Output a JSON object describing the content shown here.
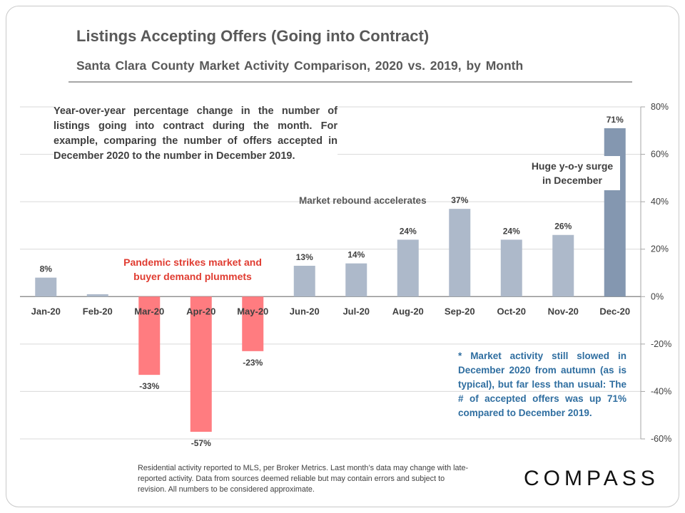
{
  "header": {
    "title": "Listings Accepting Offers (Going into Contract)",
    "subtitle": "Santa Clara County Market Activity Comparison,  2020 vs. 2019, by Month"
  },
  "annotations": {
    "description": "Year-over-year percentage change in the number of listings going into contract during the month. For example, comparing the number of offers accepted in December 2020 to the number in December 2019.",
    "rebound": "Market rebound accelerates",
    "surge_line1": "Huge y-o-y surge",
    "surge_line2": "in December",
    "pandemic_line1": "Pandemic strikes market and",
    "pandemic_line2": "buyer demand plummets",
    "december_note": "* Market activity still slowed in December 2020 from autumn (as is typical), but far less than usual: The # of accepted offers was up 71% compared to December 2019."
  },
  "footer": {
    "disclaimer": "Residential activity reported to MLS, per Broker Metrics. Last month’s data may change with late-reported activity. Data from sources deemed reliable but may contain errors and subject to revision. All numbers to be considered approximate.",
    "logo": "COMPASS"
  },
  "colors": {
    "bar_positive": "#adb9ca",
    "bar_highlight": "#8497b0",
    "bar_negative": "#ff7c80",
    "grid": "#d9d9d9",
    "axis_text": "#404040"
  },
  "chart_data": {
    "type": "bar",
    "categories": [
      "Jan-20",
      "Feb-20",
      "Mar-20",
      "Apr-20",
      "May-20",
      "Jun-20",
      "Jul-20",
      "Aug-20",
      "Sep-20",
      "Oct-20",
      "Nov-20",
      "Dec-20"
    ],
    "values": [
      8,
      1,
      -33,
      -57,
      -23,
      13,
      14,
      24,
      37,
      24,
      26,
      71
    ],
    "data_labels": [
      "8%",
      "",
      "-33%",
      "-57%",
      "-23%",
      "13%",
      "14%",
      "24%",
      "37%",
      "24%",
      "26%",
      "71%"
    ],
    "ylim": [
      -60,
      80
    ],
    "yticks": [
      80,
      60,
      40,
      20,
      0,
      -20,
      -40,
      -60
    ],
    "ytick_labels": [
      "80%",
      "60%",
      "40%",
      "20%",
      "0%",
      "-20%",
      "-40%",
      "-60%"
    ],
    "y_axis_side": "right",
    "grid": true,
    "legend": "none"
  }
}
